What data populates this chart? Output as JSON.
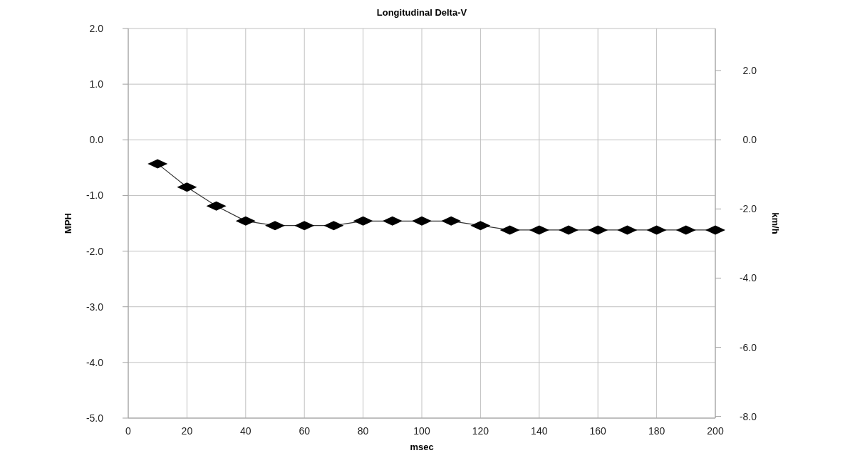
{
  "chart_data": {
    "type": "line",
    "title": "Longitudinal Delta-V",
    "xlabel": "msec",
    "ylabel": "MPH",
    "y2label": "km/h",
    "x": [
      10,
      20,
      30,
      40,
      50,
      60,
      70,
      80,
      90,
      100,
      110,
      120,
      130,
      140,
      150,
      160,
      170,
      180,
      190,
      200
    ],
    "series": [
      {
        "color": "#000000",
        "values": [
          -0.43,
          -0.85,
          -1.19,
          -1.46,
          -1.54,
          -1.54,
          -1.54,
          -1.46,
          -1.46,
          -1.46,
          -1.46,
          -1.54,
          -1.62,
          -1.62,
          -1.62,
          -1.62,
          -1.62,
          -1.62,
          -1.62,
          -1.62
        ]
      }
    ],
    "xlim": [
      0,
      200
    ],
    "xticks": [
      0,
      20,
      40,
      60,
      80,
      100,
      120,
      140,
      160,
      180,
      200
    ],
    "ylim": [
      -5,
      2
    ],
    "yticks": [
      {
        "value": -5,
        "label": "-5.0"
      },
      {
        "value": -4,
        "label": "-4.0"
      },
      {
        "value": -3,
        "label": "-3.0"
      },
      {
        "value": -2,
        "label": "-2.0"
      },
      {
        "value": -1,
        "label": "-1.0"
      },
      {
        "value": 0,
        "label": "0.0"
      },
      {
        "value": 1,
        "label": "1.0"
      },
      {
        "value": 2,
        "label": "2.0"
      }
    ],
    "y2lim": [
      -8.05,
      3.22
    ],
    "y2ticks": [
      {
        "value": -8,
        "label": "-8.0"
      },
      {
        "value": -6,
        "label": "-6.0"
      },
      {
        "value": -4,
        "label": "-4.0"
      },
      {
        "value": -2,
        "label": "-2.0"
      },
      {
        "value": 0,
        "label": "0.0"
      },
      {
        "value": 2,
        "label": "2.0"
      }
    ],
    "grid": true,
    "marker": "diamond",
    "line_style": "solid"
  }
}
